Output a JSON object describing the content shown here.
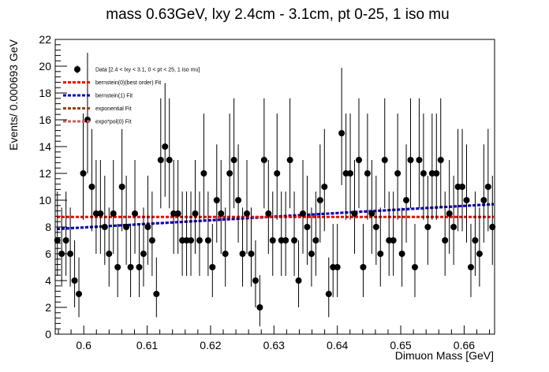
{
  "chart_data": {
    "type": "scatter",
    "title": "mass 0.63GeV, lxy 2.4cm - 3.1cm, pt 0-25, 1 iso mu",
    "xlabel": "Dimuon Mass [GeV]",
    "ylabel": "Events/ 0.000693 GeV",
    "xlim": [
      0.5955,
      0.6648
    ],
    "ylim": [
      0,
      22
    ],
    "x_ticks": [
      0.6,
      0.61,
      0.62,
      0.63,
      0.64,
      0.65,
      0.66
    ],
    "x_tick_labels": [
      "0.6",
      "0.61",
      "0.62",
      "0.63",
      "0.64",
      "0.65",
      "0.66"
    ],
    "y_ticks": [
      0,
      2,
      4,
      6,
      8,
      10,
      12,
      14,
      16,
      18,
      20,
      22
    ],
    "y_tick_labels": [
      "0",
      "2",
      "4",
      "6",
      "8",
      "10",
      "12",
      "14",
      "16",
      "18",
      "20",
      "22"
    ],
    "legend_position": "top-left",
    "legend": [
      {
        "label": "Data [2.4 < lxy < 3.1, 0 < pt < 25, 1 iso mu]",
        "kind": "marker",
        "color": "#000000"
      },
      {
        "label": "bernstein(0)(best order) Fit",
        "kind": "line",
        "color": "#ff0000",
        "label_color": "#ff0000"
      },
      {
        "label": "bernstein(1) Fit",
        "kind": "line",
        "color": "#0000cc",
        "label_color": "#000000"
      },
      {
        "label": "exponential Fit",
        "kind": "line",
        "color": "#8b4513",
        "label_color": "#000000"
      },
      {
        "label": "expo*pol(0) Fit",
        "kind": "line",
        "color": "#cd5c5c",
        "label_color": "#000000"
      }
    ],
    "series": [
      {
        "name": "Data [2.4 < lxy < 3.1, 0 < pt < 25, 1 iso mu]",
        "values": [
          7,
          6,
          7,
          6,
          4,
          3,
          12,
          16,
          11,
          9,
          9,
          8,
          6,
          9,
          5,
          11,
          8,
          5,
          9,
          5,
          6,
          8,
          7,
          3,
          13,
          14,
          13,
          9,
          9,
          7,
          7,
          7,
          9,
          7,
          12,
          7,
          5,
          10,
          9,
          6,
          12,
          13,
          10,
          6,
          9,
          6,
          4,
          2,
          13,
          9,
          7,
          12,
          7,
          7,
          13,
          7,
          4,
          9,
          8,
          6,
          7,
          10,
          11,
          3,
          5,
          5,
          15,
          12,
          12,
          9,
          13,
          5,
          12,
          9,
          8,
          6,
          13,
          7,
          7,
          12,
          6,
          10,
          13,
          5,
          13,
          12,
          8,
          12,
          12,
          13,
          7,
          9,
          8,
          11,
          11,
          10,
          5,
          7,
          6,
          10,
          11,
          8
        ]
      },
      {
        "name": "bernstein(0)(best order) Fit",
        "values": [
          8.75,
          8.75
        ]
      },
      {
        "name": "bernstein(1) Fit",
        "values": [
          7.85,
          9.7
        ]
      },
      {
        "name": "exponential Fit",
        "values": [
          7.85,
          9.7
        ]
      },
      {
        "name": "expo*pol(0) Fit",
        "values": [
          7.85,
          9.7
        ]
      }
    ]
  }
}
